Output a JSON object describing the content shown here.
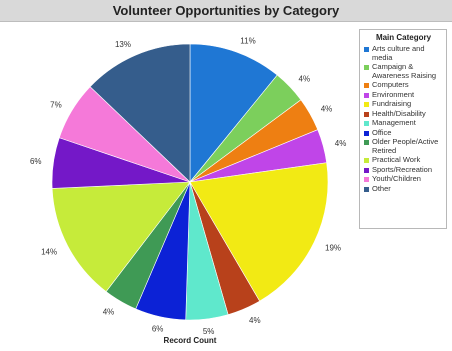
{
  "chart_data": {
    "type": "pie",
    "title": "Volunteer Opportunities by Category",
    "xlabel": "Record Count",
    "legend_title": "Main Category",
    "legend_position": "right",
    "slices": [
      {
        "label": "Arts culture and media",
        "value": 11,
        "value_label": "11%",
        "color": "#1f77d4"
      },
      {
        "label": "Campaign & Awareness Raising",
        "value": 4,
        "value_label": "4%",
        "color": "#7ccf5c"
      },
      {
        "label": "Computers",
        "value": 4,
        "value_label": "4%",
        "color": "#ee7f12"
      },
      {
        "label": "Environment",
        "value": 4,
        "value_label": "4%",
        "color": "#c045e8"
      },
      {
        "label": "Fundraising",
        "value": 19,
        "value_label": "19%",
        "color": "#f2ea14"
      },
      {
        "label": "Health/Disability",
        "value": 4,
        "value_label": "4%",
        "color": "#b8411b"
      },
      {
        "label": "Management",
        "value": 5,
        "value_label": "5%",
        "color": "#5fe8cc"
      },
      {
        "label": "Office",
        "value": 6,
        "value_label": "6%",
        "color": "#0c22d6"
      },
      {
        "label": "Older People/Active Retired",
        "value": 4,
        "value_label": "4%",
        "color": "#3f9a55"
      },
      {
        "label": "Practical Work",
        "value": 14,
        "value_label": "14%",
        "color": "#c6eb3a"
      },
      {
        "label": "Sports/Recreation",
        "value": 6,
        "value_label": "6%",
        "color": "#7418c8"
      },
      {
        "label": "Youth/Children",
        "value": 7,
        "value_label": "7%",
        "color": "#f579d9"
      },
      {
        "label": "Other",
        "value": 13,
        "value_label": "13%",
        "color": "#355d8c"
      }
    ]
  }
}
